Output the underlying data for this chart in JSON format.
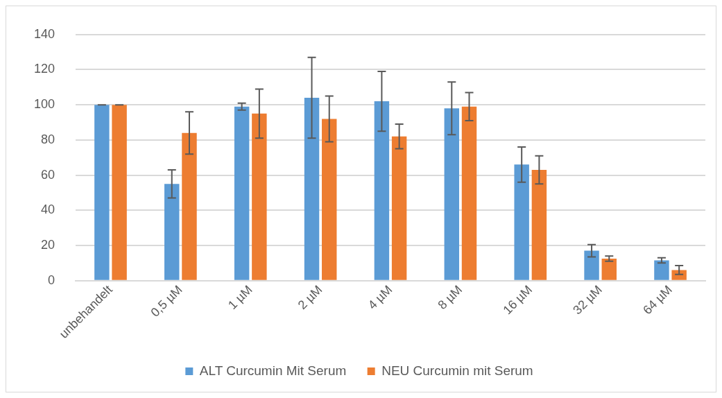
{
  "chart_data": {
    "type": "bar",
    "categories": [
      "unbehandelt",
      "0,5 µM",
      "1 µM",
      "2 µM",
      "4 µM",
      "8 µM",
      "16 µM",
      "32 µM",
      "64 µM"
    ],
    "series": [
      {
        "name": "ALT Curcumin Mit Serum",
        "color": "#5b9bd5",
        "values": [
          100,
          55,
          99,
          104,
          102,
          98,
          66,
          17,
          11.5
        ],
        "errors": [
          0,
          8,
          2,
          23,
          17,
          15,
          10,
          3.5,
          1.5
        ]
      },
      {
        "name": "NEU Curcumin mit Serum",
        "color": "#ed7d31",
        "values": [
          100,
          84,
          95,
          92,
          82,
          99,
          63,
          12.5,
          6
        ],
        "errors": [
          0,
          12,
          14,
          13,
          7,
          8,
          8,
          1.5,
          2.5
        ]
      }
    ],
    "ylim": [
      0,
      140
    ],
    "yticks": [
      0,
      20,
      40,
      60,
      80,
      100,
      120,
      140
    ],
    "grid": "y",
    "legend": "bottom"
  }
}
